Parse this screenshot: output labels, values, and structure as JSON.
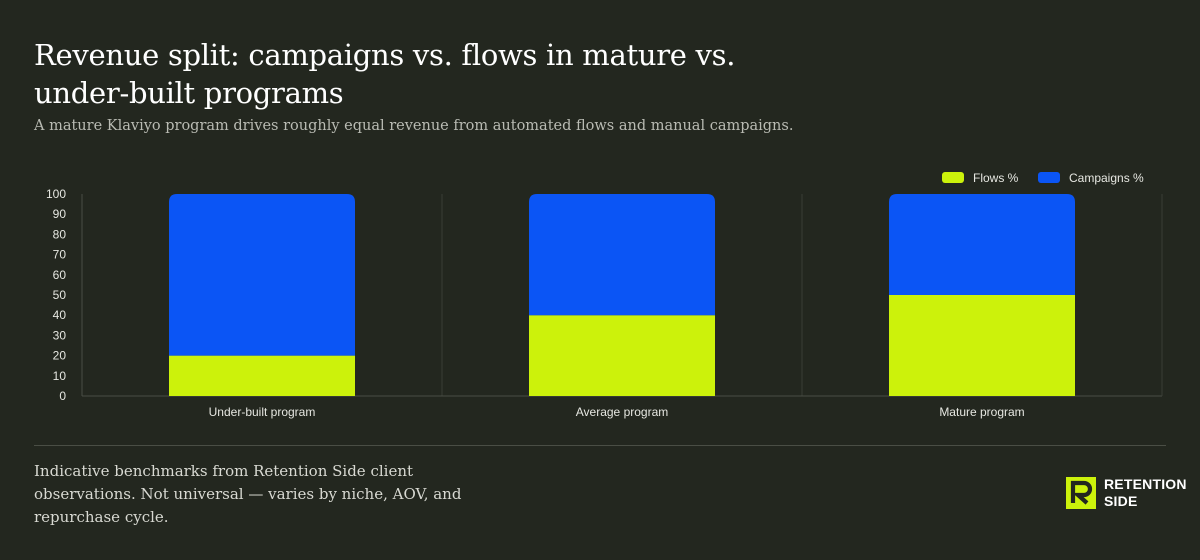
{
  "header": {
    "title": "Revenue split: campaigns vs. flows in mature vs. under-built programs",
    "subtitle": "A mature Klaviyo program drives roughly equal revenue from automated flows and manual campaigns."
  },
  "chart_data": {
    "type": "bar",
    "stacked": true,
    "categories": [
      "Under-built program",
      "Average program",
      "Mature program"
    ],
    "series": [
      {
        "name": "Flows %",
        "values": [
          20,
          40,
          50
        ],
        "color": "#ccf20b"
      },
      {
        "name": "Campaigns %",
        "values": [
          80,
          60,
          50
        ],
        "color": "#0b55f5"
      }
    ],
    "ylim": [
      0,
      100
    ],
    "yticks": [
      0,
      10,
      20,
      30,
      40,
      50,
      60,
      70,
      80,
      90,
      100
    ],
    "legend_position": "top-right",
    "grid": "vertical"
  },
  "footer": {
    "note": "Indicative benchmarks from Retention Side client observations. Not universal — varies by niche, AOV, and repurchase cycle.",
    "logo_line1": "RETENTION",
    "logo_line2": "SIDE",
    "logo_icon": "retention-side-logo-icon"
  }
}
